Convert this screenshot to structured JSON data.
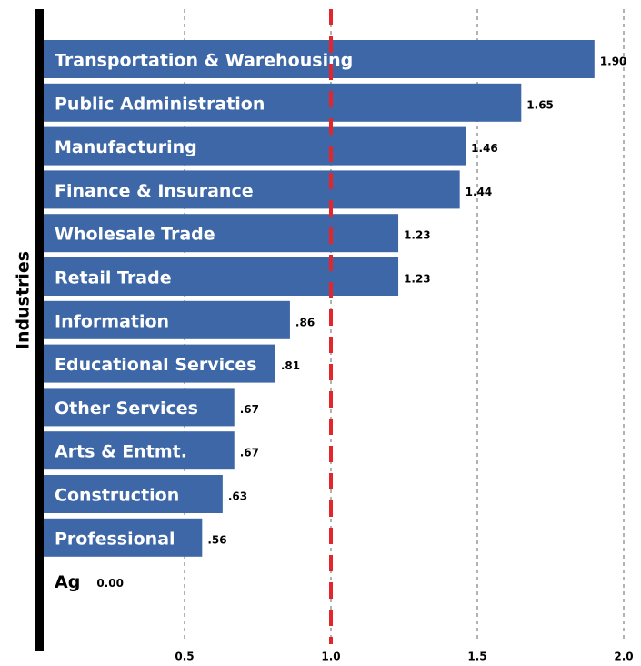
{
  "chart_data": {
    "type": "bar",
    "orientation": "horizontal",
    "y_label": "Industries",
    "categories": [
      "Transportation & Warehousing",
      "Public Administration",
      "Manufacturing",
      "Finance & Insurance",
      "Wholesale Trade",
      "Retail Trade",
      "Information",
      "Educational Services",
      "Other Services",
      "Arts & Entmt.",
      "Construction",
      "Professional",
      "Ag"
    ],
    "values": [
      1.9,
      1.65,
      1.46,
      1.44,
      1.23,
      1.23,
      0.86,
      0.81,
      0.67,
      0.67,
      0.63,
      0.56,
      0
    ],
    "value_labels": [
      "1.90",
      "1.65",
      "1.46",
      "1.44",
      "1.23",
      "1.23",
      ".86",
      ".81",
      ".67",
      ".67",
      ".63",
      ".56",
      "0.00"
    ],
    "color": "#3d67a6",
    "xlim": [
      0,
      2
    ],
    "xticks": [
      0.5,
      {
        "value": 1,
        "label": "1.0"
      },
      1.5,
      {
        "value": 2,
        "label": "2.0"
      }
    ],
    "grid": true,
    "reference_line": {
      "value": 1,
      "color": "#e3262b"
    }
  }
}
